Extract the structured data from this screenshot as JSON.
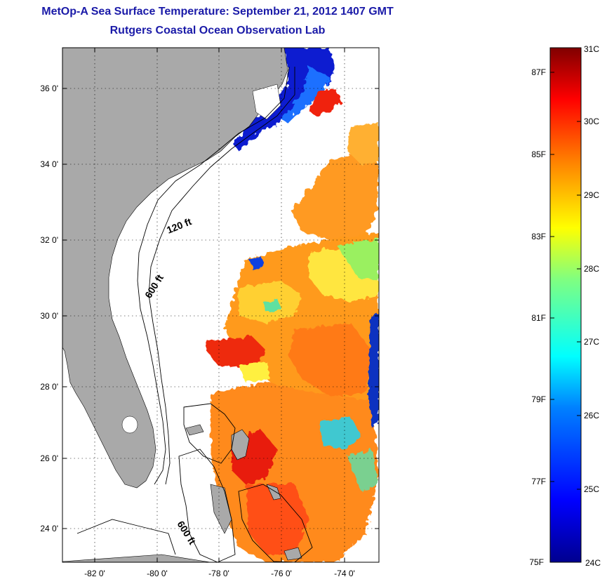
{
  "title": "MetOp-A Sea Surface Temperature:  September 21, 2012 1407 GMT",
  "subtitle": "Rutgers Coastal Ocean Observation Lab",
  "map": {
    "lat_ticks": [
      "36 0'",
      "34 0'",
      "32 0'",
      "30 0'",
      "28 0'",
      "26 0'",
      "24 0'"
    ],
    "lon_ticks": [
      "-82 0'",
      "-80 0'",
      "-78 0'",
      "-76 0'",
      "-74 0'"
    ],
    "contours": [
      "120 ft",
      "600 ft",
      "600 ft"
    ],
    "colors": {
      "land": "#a9a9a9",
      "ocean_nodata": "#ffffff"
    }
  },
  "colorbar": {
    "fahrenheit": [
      "87F",
      "85F",
      "83F",
      "81F",
      "79F",
      "77F",
      "75F"
    ],
    "celsius": [
      "31C",
      "30C",
      "29C",
      "28C",
      "27C",
      "26C",
      "25C",
      "24C"
    ],
    "celsius_min": 24,
    "celsius_max": 31,
    "colormap": [
      "#00008f",
      "#0000ff",
      "#0080ff",
      "#00ffff",
      "#80ff80",
      "#ffff00",
      "#ff8000",
      "#ff0000",
      "#800000"
    ]
  }
}
